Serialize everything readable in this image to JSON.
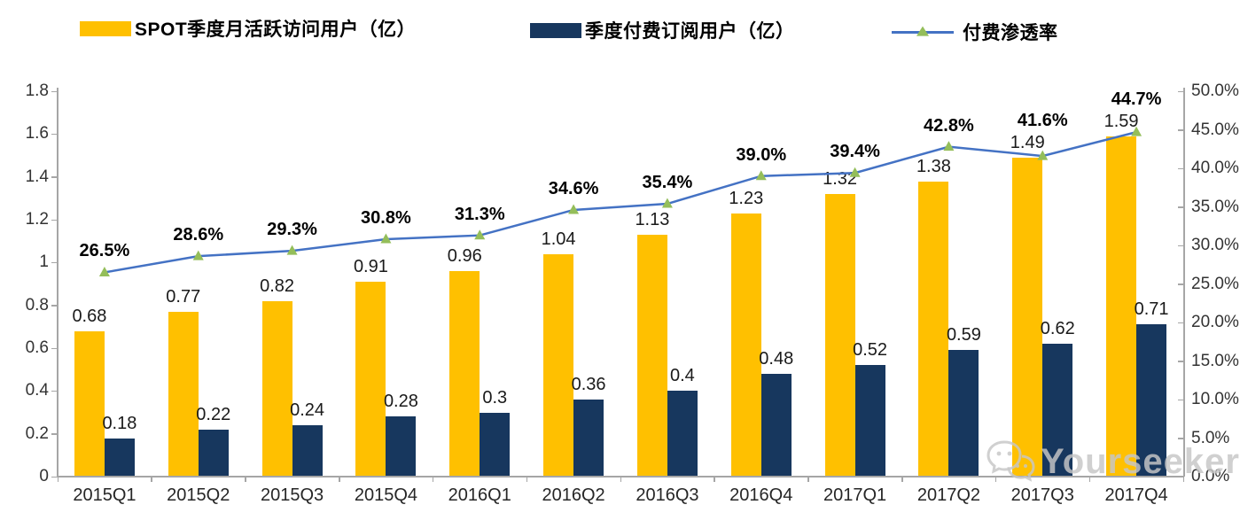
{
  "legend": {
    "items": [
      {
        "label": "SPOT季度月活跃访问用户（亿）",
        "swatch_color": "#FFC000",
        "marker": "bar"
      },
      {
        "label": "季度付费订阅用户（亿）",
        "swatch_color": "#17375E",
        "marker": "bar"
      },
      {
        "label": "付费渗透率",
        "line_color": "#4472C4",
        "marker_color": "#94BE5A",
        "marker": "line-triangle"
      }
    ]
  },
  "watermark": {
    "text": "Yourseeker",
    "icon": "wechat-icon"
  },
  "colors": {
    "mau_bar": "#FFC000",
    "subs_bar": "#17375E",
    "line": "#4472C4",
    "marker": "#94BE5A",
    "axis": "#A6A6A6"
  },
  "chart_data": {
    "type": "bar",
    "subtype": "grouped-bars-with-line",
    "categories": [
      "2015Q1",
      "2015Q2",
      "2015Q3",
      "2015Q4",
      "2016Q1",
      "2016Q2",
      "2016Q3",
      "2016Q4",
      "2017Q1",
      "2017Q2",
      "2017Q3",
      "2017Q4"
    ],
    "series": [
      {
        "name": "SPOT季度月活跃访问用户（亿）",
        "type": "bar",
        "axis": "left",
        "color": "#FFC000",
        "values": [
          0.68,
          0.77,
          0.82,
          0.91,
          0.96,
          1.04,
          1.13,
          1.23,
          1.32,
          1.38,
          1.49,
          1.59
        ],
        "labels": [
          "0.68",
          "0.77",
          "0.82",
          "0.91",
          "0.96",
          "1.04",
          "1.13",
          "1.23",
          "1.32",
          "1.38",
          "1.49",
          "1.59"
        ]
      },
      {
        "name": "季度付费订阅用户（亿）",
        "type": "bar",
        "axis": "left",
        "color": "#17375E",
        "values": [
          0.18,
          0.22,
          0.24,
          0.28,
          0.3,
          0.36,
          0.4,
          0.48,
          0.52,
          0.59,
          0.62,
          0.71
        ],
        "labels": [
          "0.18",
          "0.22",
          "0.24",
          "0.28",
          "0.3",
          "0.36",
          "0.4",
          "0.48",
          "0.52",
          "0.59",
          "0.62",
          "0.71"
        ]
      },
      {
        "name": "付费渗透率",
        "type": "line",
        "axis": "right",
        "color": "#4472C4",
        "marker_color": "#94BE5A",
        "values": [
          26.5,
          28.6,
          29.3,
          30.8,
          31.3,
          34.6,
          35.4,
          39.0,
          39.4,
          42.8,
          41.6,
          44.7
        ],
        "labels": [
          "26.5%",
          "28.6%",
          "29.3%",
          "30.8%",
          "31.3%",
          "34.6%",
          "35.4%",
          "39.0%",
          "39.4%",
          "42.8%",
          "41.6%",
          "44.7%"
        ]
      }
    ],
    "left_axis": {
      "min": 0,
      "max": 1.8,
      "tick_labels": [
        "0",
        "0.2",
        "0.4",
        "0.6",
        "0.8",
        "1",
        "1.2",
        "1.4",
        "1.6",
        "1.8"
      ]
    },
    "right_axis": {
      "min": 0,
      "max": 50,
      "tick_labels": [
        "0.0%",
        "5.0%",
        "10.0%",
        "15.0%",
        "20.0%",
        "25.0%",
        "30.0%",
        "35.0%",
        "40.0%",
        "45.0%",
        "50.0%"
      ]
    },
    "grid": false,
    "legend_position": "top",
    "title": ""
  }
}
